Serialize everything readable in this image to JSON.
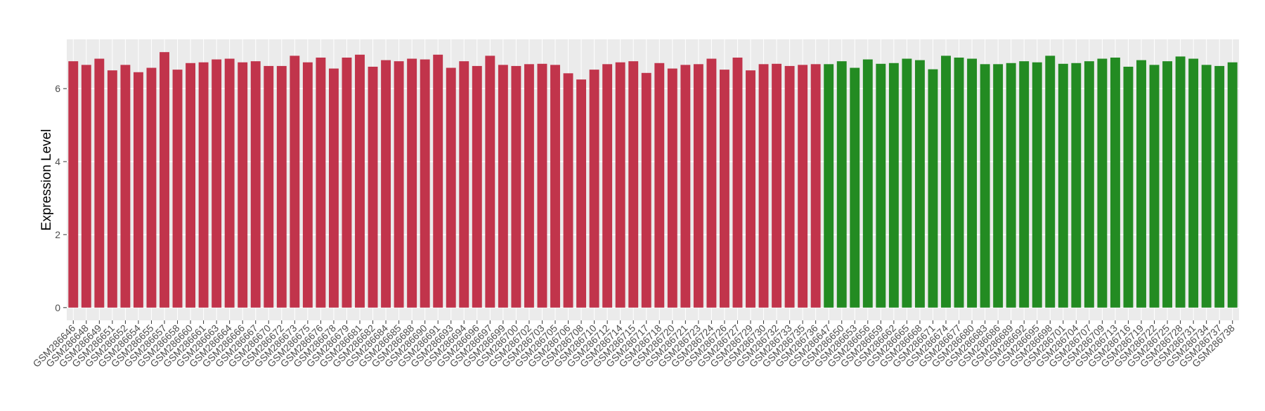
{
  "chart_data": {
    "type": "bar",
    "y_label": "Expression Level",
    "categories": [
      "GSM286646",
      "GSM286648",
      "GSM286649",
      "GSM286651",
      "GSM286652",
      "GSM286654",
      "GSM286655",
      "GSM286657",
      "GSM286658",
      "GSM286660",
      "GSM286661",
      "GSM286663",
      "GSM286664",
      "GSM286666",
      "GSM286667",
      "GSM286670",
      "GSM286672",
      "GSM286673",
      "GSM286675",
      "GSM286676",
      "GSM286678",
      "GSM286679",
      "GSM286681",
      "GSM286682",
      "GSM286684",
      "GSM286685",
      "GSM286688",
      "GSM286690",
      "GSM286691",
      "GSM286693",
      "GSM286694",
      "GSM286696",
      "GSM286697",
      "GSM286699",
      "GSM286700",
      "GSM286702",
      "GSM286703",
      "GSM286705",
      "GSM286706",
      "GSM286708",
      "GSM286710",
      "GSM286712",
      "GSM286714",
      "GSM286715",
      "GSM286717",
      "GSM286718",
      "GSM286720",
      "GSM286721",
      "GSM286723",
      "GSM286724",
      "GSM286726",
      "GSM286727",
      "GSM286729",
      "GSM286730",
      "GSM286732",
      "GSM286733",
      "GSM286735",
      "GSM286736",
      "GSM286647",
      "GSM286650",
      "GSM286653",
      "GSM286656",
      "GSM286659",
      "GSM286662",
      "GSM286665",
      "GSM286668",
      "GSM286671",
      "GSM286674",
      "GSM286677",
      "GSM286680",
      "GSM286683",
      "GSM286686",
      "GSM286689",
      "GSM286692",
      "GSM286695",
      "GSM286698",
      "GSM286701",
      "GSM286704",
      "GSM286707",
      "GSM286709",
      "GSM286713",
      "GSM286716",
      "GSM286719",
      "GSM286722",
      "GSM286725",
      "GSM286728",
      "GSM286731",
      "GSM286734",
      "GSM286737",
      "GSM286738"
    ],
    "series": [
      {
        "color": "#c1344b",
        "values": [
          6.75,
          6.65,
          6.82,
          6.5,
          6.65,
          6.45,
          6.57,
          7.0,
          6.52,
          6.7,
          6.72,
          6.8,
          6.82,
          6.72,
          6.75,
          6.62,
          6.62,
          6.9,
          6.72,
          6.85,
          6.55,
          6.85,
          6.93,
          6.6,
          6.78,
          6.75,
          6.82,
          6.8,
          6.93,
          6.57,
          6.75,
          6.62,
          6.9,
          6.65,
          6.62,
          6.67,
          6.68,
          6.65,
          6.42,
          6.25,
          6.52,
          6.67,
          6.72,
          6.75,
          6.43,
          6.7,
          6.55,
          6.65,
          6.67,
          6.82,
          6.52,
          6.85,
          6.5,
          6.67,
          6.68,
          6.62,
          6.65,
          6.67,
          null,
          null,
          null,
          null,
          null,
          null,
          null,
          null,
          null,
          null,
          null,
          null,
          null,
          null,
          null,
          null,
          null,
          null,
          null,
          null,
          null,
          null,
          null,
          null,
          null,
          null,
          null,
          null,
          null,
          null,
          null,
          null
        ]
      },
      {
        "color": "#238b22",
        "values": [
          null,
          null,
          null,
          null,
          null,
          null,
          null,
          null,
          null,
          null,
          null,
          null,
          null,
          null,
          null,
          null,
          null,
          null,
          null,
          null,
          null,
          null,
          null,
          null,
          null,
          null,
          null,
          null,
          null,
          null,
          null,
          null,
          null,
          null,
          null,
          null,
          null,
          null,
          null,
          null,
          null,
          null,
          null,
          null,
          null,
          null,
          null,
          null,
          null,
          null,
          null,
          null,
          null,
          null,
          null,
          null,
          null,
          null,
          6.67,
          6.75,
          6.57,
          6.8,
          6.68,
          6.7,
          6.82,
          6.78,
          6.53,
          6.9,
          6.85,
          6.82,
          6.67,
          6.67,
          6.7,
          6.75,
          6.72,
          6.9,
          6.68,
          6.7,
          6.75,
          6.82,
          6.85,
          6.6,
          6.78,
          6.65,
          6.75,
          6.88,
          6.82,
          6.65,
          6.62,
          6.72
        ]
      }
    ],
    "ylim": [
      -0.35,
      7.35
    ],
    "yticks": [
      0,
      2,
      4,
      6
    ],
    "grid": true
  }
}
